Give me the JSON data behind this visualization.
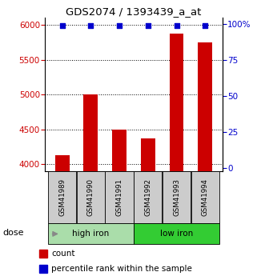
{
  "title": "GDS2074 / 1393439_a_at",
  "samples": [
    "GSM41989",
    "GSM41990",
    "GSM41991",
    "GSM41992",
    "GSM41993",
    "GSM41994"
  ],
  "counts": [
    4130,
    5000,
    4500,
    4370,
    5870,
    5750
  ],
  "percentiles": [
    99,
    99,
    99,
    99,
    99,
    99
  ],
  "ylim_left": [
    3900,
    6100
  ],
  "ylim_right": [
    -2.08,
    104.17
  ],
  "yticks_left": [
    4000,
    4500,
    5000,
    5500,
    6000
  ],
  "yticks_right": [
    0,
    25,
    50,
    75,
    100
  ],
  "bar_color": "#cc0000",
  "dot_color": "#0000cc",
  "left_tick_color": "#cc0000",
  "right_tick_color": "#0000cc",
  "group_info": [
    {
      "start": 0,
      "end": 2,
      "label": "high iron",
      "color": "#aaddaa"
    },
    {
      "start": 3,
      "end": 5,
      "label": "low iron",
      "color": "#33cc33"
    }
  ],
  "sample_box_color": "#cccccc",
  "dose_label": "dose",
  "legend_items": [
    {
      "color": "#cc0000",
      "label": "count"
    },
    {
      "color": "#0000cc",
      "label": "percentile rank within the sample"
    }
  ]
}
